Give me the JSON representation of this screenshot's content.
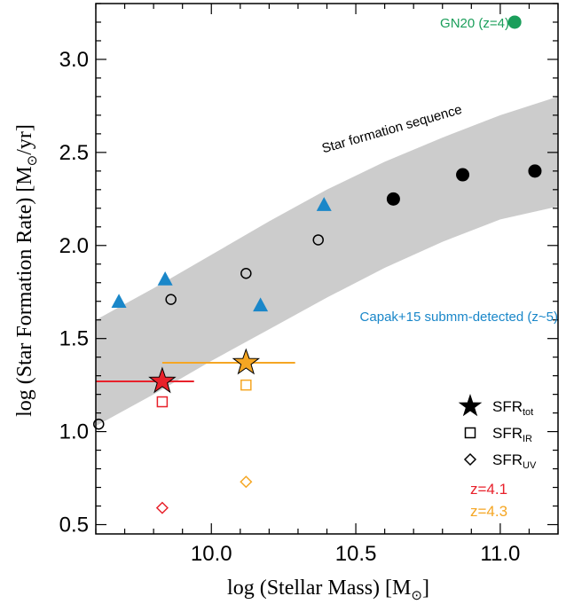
{
  "chart_data": {
    "type": "scatter",
    "xlabel_main": "log (Stellar Mass) [M",
    "xlabel_sub": "⊙",
    "xlabel_end": "]",
    "ylabel_main": "log (Star Formation Rate) [M",
    "ylabel_sub": "⊙",
    "ylabel_end": "/yr]",
    "xlim": [
      9.6,
      11.2
    ],
    "ylim": [
      0.45,
      3.3
    ],
    "xticks": [
      {
        "value": 10.0,
        "label": "10.0"
      },
      {
        "value": 10.5,
        "label": "10.5"
      },
      {
        "value": 11.0,
        "label": "11.0"
      }
    ],
    "yticks": [
      {
        "value": 0.5,
        "label": "0.5"
      },
      {
        "value": 1.0,
        "label": "1.0"
      },
      {
        "value": 1.5,
        "label": "1.5"
      },
      {
        "value": 2.0,
        "label": "2.0"
      },
      {
        "value": 2.5,
        "label": "2.5"
      },
      {
        "value": 3.0,
        "label": "3.0"
      }
    ],
    "band": {
      "label": "Star formation sequence",
      "color": "#cccccc",
      "lower": [
        [
          9.6,
          1.03
        ],
        [
          9.8,
          1.2
        ],
        [
          10.0,
          1.38
        ],
        [
          10.2,
          1.55
        ],
        [
          10.4,
          1.72
        ],
        [
          10.6,
          1.88
        ],
        [
          10.8,
          2.02
        ],
        [
          11.0,
          2.14
        ],
        [
          11.2,
          2.21
        ]
      ],
      "upper": [
        [
          9.6,
          1.6
        ],
        [
          9.8,
          1.77
        ],
        [
          10.0,
          1.95
        ],
        [
          10.2,
          2.13
        ],
        [
          10.4,
          2.3
        ],
        [
          10.6,
          2.45
        ],
        [
          10.8,
          2.58
        ],
        [
          11.0,
          2.7
        ],
        [
          11.2,
          2.8
        ]
      ]
    },
    "series": [
      {
        "marker": "triangle",
        "color": "#1a87c9",
        "label": "Capak+15 submm-detected (z~5)",
        "points": [
          [
            9.68,
            1.7
          ],
          [
            9.84,
            1.82
          ],
          [
            10.17,
            1.68
          ],
          [
            10.39,
            2.22
          ]
        ]
      },
      {
        "marker": "open-circle",
        "color": "#000000",
        "points": [
          [
            9.61,
            1.04
          ],
          [
            9.86,
            1.71
          ],
          [
            10.12,
            1.85
          ],
          [
            10.37,
            2.03
          ]
        ]
      },
      {
        "marker": "filled-circle",
        "color": "#000000",
        "points": [
          [
            10.63,
            2.25
          ],
          [
            10.87,
            2.38
          ],
          [
            11.12,
            2.4
          ]
        ]
      },
      {
        "marker": "filled-circle",
        "color": "#1a9e5a",
        "label": "GN20 (z=4)",
        "points": [
          [
            11.05,
            3.2
          ]
        ]
      }
    ],
    "highlight": [
      {
        "z_label": "z=4.1",
        "color": "#e8212b",
        "x": 9.83,
        "sfr_tot": 1.27,
        "sfr_ir": 1.16,
        "sfr_uv": 0.59,
        "xerr": [
          9.6,
          9.94
        ]
      },
      {
        "z_label": "z=4.3",
        "color": "#f5a623",
        "x": 10.12,
        "sfr_tot": 1.37,
        "sfr_ir": 1.25,
        "sfr_uv": 0.73,
        "xerr": [
          9.83,
          10.29
        ]
      }
    ],
    "legend": {
      "placement": "bottom-right",
      "entries": [
        {
          "marker": "star",
          "main": "SFR",
          "sub": "tot"
        },
        {
          "marker": "open-square",
          "main": "SFR",
          "sub": "IR"
        },
        {
          "marker": "open-diamond",
          "main": "SFR",
          "sub": "UV"
        }
      ]
    }
  }
}
